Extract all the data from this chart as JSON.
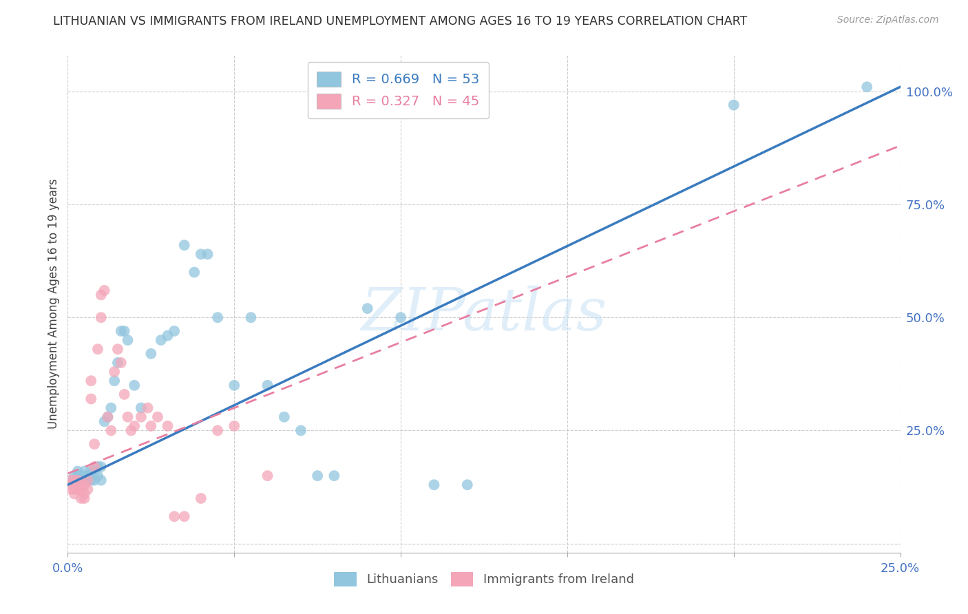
{
  "title": "LITHUANIAN VS IMMIGRANTS FROM IRELAND UNEMPLOYMENT AMONG AGES 16 TO 19 YEARS CORRELATION CHART",
  "source": "Source: ZipAtlas.com",
  "ylabel": "Unemployment Among Ages 16 to 19 years",
  "watermark": "ZIPatlas",
  "xlim": [
    0.0,
    0.25
  ],
  "ylim": [
    -0.02,
    1.08
  ],
  "xticks": [
    0.0,
    0.05,
    0.1,
    0.15,
    0.2,
    0.25
  ],
  "xtick_labels": [
    "0.0%",
    "",
    "",
    "",
    "",
    "25.0%"
  ],
  "yticks_right": [
    0.25,
    0.5,
    0.75,
    1.0
  ],
  "ytick_right_labels": [
    "25.0%",
    "50.0%",
    "75.0%",
    "100.0%"
  ],
  "blue_R": 0.669,
  "blue_N": 53,
  "pink_R": 0.327,
  "pink_N": 45,
  "blue_color": "#92c5de",
  "pink_color": "#f4a6b8",
  "blue_line_color": "#3a7bbf",
  "pink_line_color": "#e87fa0",
  "legend_label_blue": "Lithuanians",
  "legend_label_pink": "Immigrants from Ireland",
  "blue_line_x0": 0.0,
  "blue_line_y0": 0.13,
  "blue_line_x1": 0.25,
  "blue_line_y1": 1.01,
  "pink_line_x0": 0.0,
  "pink_line_y0": 0.155,
  "pink_line_x1": 0.25,
  "pink_line_y1": 0.88,
  "blue_scatter_x": [
    0.001,
    0.002,
    0.002,
    0.003,
    0.003,
    0.003,
    0.004,
    0.004,
    0.005,
    0.005,
    0.005,
    0.006,
    0.006,
    0.007,
    0.007,
    0.008,
    0.008,
    0.009,
    0.009,
    0.01,
    0.01,
    0.011,
    0.012,
    0.013,
    0.014,
    0.015,
    0.016,
    0.017,
    0.018,
    0.02,
    0.022,
    0.025,
    0.028,
    0.03,
    0.032,
    0.035,
    0.038,
    0.04,
    0.042,
    0.045,
    0.05,
    0.055,
    0.06,
    0.065,
    0.07,
    0.075,
    0.08,
    0.09,
    0.1,
    0.11,
    0.12,
    0.2,
    0.24
  ],
  "blue_scatter_y": [
    0.14,
    0.14,
    0.15,
    0.13,
    0.15,
    0.16,
    0.14,
    0.15,
    0.13,
    0.15,
    0.16,
    0.14,
    0.15,
    0.14,
    0.16,
    0.14,
    0.16,
    0.15,
    0.17,
    0.14,
    0.17,
    0.27,
    0.28,
    0.3,
    0.36,
    0.4,
    0.47,
    0.47,
    0.45,
    0.35,
    0.3,
    0.42,
    0.45,
    0.46,
    0.47,
    0.66,
    0.6,
    0.64,
    0.64,
    0.5,
    0.35,
    0.5,
    0.35,
    0.28,
    0.25,
    0.15,
    0.15,
    0.52,
    0.5,
    0.13,
    0.13,
    0.97,
    1.01
  ],
  "pink_scatter_x": [
    0.001,
    0.001,
    0.001,
    0.002,
    0.002,
    0.002,
    0.003,
    0.003,
    0.003,
    0.004,
    0.004,
    0.004,
    0.005,
    0.005,
    0.005,
    0.006,
    0.006,
    0.007,
    0.007,
    0.008,
    0.008,
    0.009,
    0.01,
    0.01,
    0.011,
    0.012,
    0.013,
    0.014,
    0.015,
    0.016,
    0.017,
    0.018,
    0.019,
    0.02,
    0.022,
    0.024,
    0.025,
    0.027,
    0.03,
    0.032,
    0.035,
    0.04,
    0.045,
    0.05,
    0.06
  ],
  "pink_scatter_y": [
    0.13,
    0.14,
    0.12,
    0.14,
    0.12,
    0.11,
    0.14,
    0.12,
    0.13,
    0.12,
    0.1,
    0.13,
    0.13,
    0.11,
    0.1,
    0.14,
    0.12,
    0.36,
    0.32,
    0.22,
    0.17,
    0.43,
    0.55,
    0.5,
    0.56,
    0.28,
    0.25,
    0.38,
    0.43,
    0.4,
    0.33,
    0.28,
    0.25,
    0.26,
    0.28,
    0.3,
    0.26,
    0.28,
    0.26,
    0.06,
    0.06,
    0.1,
    0.25,
    0.26,
    0.15
  ]
}
